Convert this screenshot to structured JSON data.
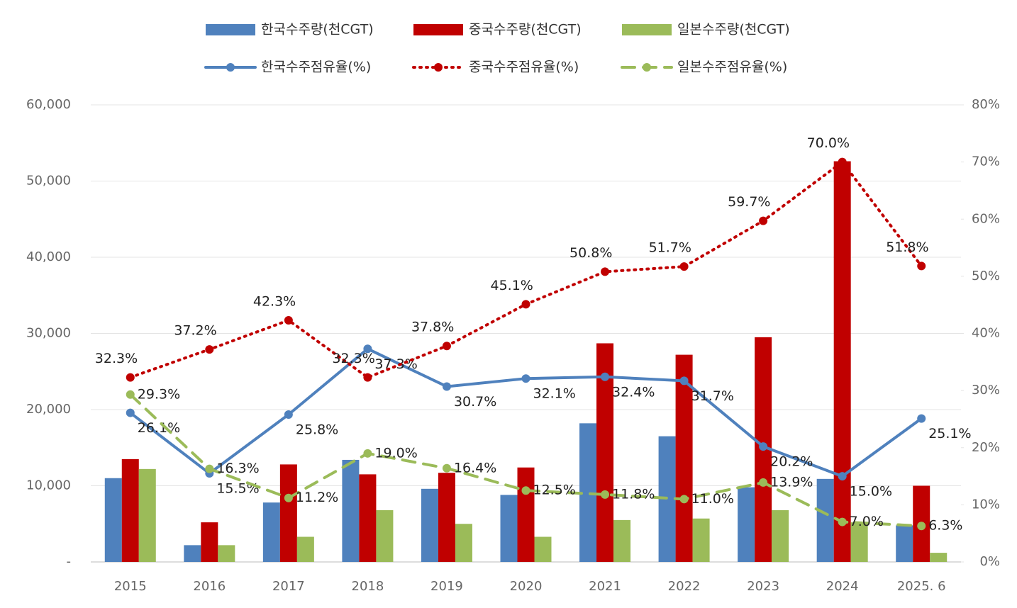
{
  "chart_data": {
    "type": "combo",
    "categories": [
      "2015",
      "2016",
      "2017",
      "2018",
      "2019",
      "2020",
      "2021",
      "2022",
      "2023",
      "2024",
      "2025. 6"
    ],
    "ylim": [
      0,
      60000
    ],
    "yticks": [
      {
        "value": 0,
        "label": "-"
      },
      {
        "value": 10000,
        "label": "10,000"
      },
      {
        "value": 20000,
        "label": "20,000"
      },
      {
        "value": 30000,
        "label": "30,000"
      },
      {
        "value": 40000,
        "label": "40,000"
      },
      {
        "value": 50000,
        "label": "50,000"
      },
      {
        "value": 60000,
        "label": "60,000"
      }
    ],
    "y2lim": [
      0,
      80
    ],
    "y2ticks": [
      {
        "value": 0,
        "label": "0%"
      },
      {
        "value": 10,
        "label": "10%"
      },
      {
        "value": 20,
        "label": "20%"
      },
      {
        "value": 30,
        "label": "30%"
      },
      {
        "value": 40,
        "label": "40%"
      },
      {
        "value": 50,
        "label": "50%"
      },
      {
        "value": 60,
        "label": "60%"
      },
      {
        "value": 70,
        "label": "70%"
      },
      {
        "value": 80,
        "label": "80%"
      }
    ],
    "grid": true,
    "series": [
      {
        "name": "한국수주량(천CGT)",
        "type": "bar",
        "color": "#4f81bd",
        "values": [
          11000,
          2200,
          7800,
          13400,
          9600,
          8800,
          18200,
          16500,
          9800,
          10900,
          4800
        ]
      },
      {
        "name": "중국수주량(천CGT)",
        "type": "bar",
        "color": "#c00000",
        "values": [
          13500,
          5200,
          12800,
          11500,
          11700,
          12400,
          28700,
          27200,
          29500,
          52600,
          10000
        ]
      },
      {
        "name": "일본수주량(천CGT)",
        "type": "bar",
        "color": "#9bbb59",
        "values": [
          12200,
          2200,
          3300,
          6800,
          5000,
          3300,
          5500,
          5700,
          6800,
          5200,
          1200
        ]
      },
      {
        "name": "한국수주점유율(%)",
        "type": "line",
        "axis": "y2",
        "line_style": "solid",
        "color": "#4f81bd",
        "values": [
          26.1,
          15.5,
          25.8,
          37.3,
          30.7,
          32.1,
          32.4,
          31.7,
          20.2,
          15.0,
          25.1
        ],
        "value_labels": [
          "26.1%",
          "15.5%",
          "25.8%",
          "37.3%",
          "30.7%",
          "32.1%",
          "32.4%",
          "31.7%",
          "20.2%",
          "15.0%",
          "25.1%"
        ]
      },
      {
        "name": "중국수주점유율(%)",
        "type": "line",
        "axis": "y2",
        "line_style": "dotted",
        "color": "#c00000",
        "values": [
          32.3,
          37.2,
          42.3,
          32.3,
          37.8,
          45.1,
          50.8,
          51.7,
          59.7,
          70.0,
          51.8
        ],
        "value_labels": [
          "32.3%",
          "37.2%",
          "42.3%",
          "32.3%",
          "37.8%",
          "45.1%",
          "50.8%",
          "51.7%",
          "59.7%",
          "70.0%",
          "51.8%"
        ]
      },
      {
        "name": "일본수주점유율(%)",
        "type": "line",
        "axis": "y2",
        "line_style": "dashed",
        "color": "#9bbb59",
        "values": [
          29.3,
          16.3,
          11.2,
          19.0,
          16.4,
          12.5,
          11.8,
          11.0,
          13.9,
          7.0,
          6.3
        ],
        "value_labels": [
          "29.3%",
          "16.3%",
          "11.2%",
          "19.0%",
          "16.4%",
          "12.5%",
          "11.8%",
          "11.0%",
          "13.9%",
          "7.0%",
          "6.3%"
        ]
      }
    ]
  }
}
